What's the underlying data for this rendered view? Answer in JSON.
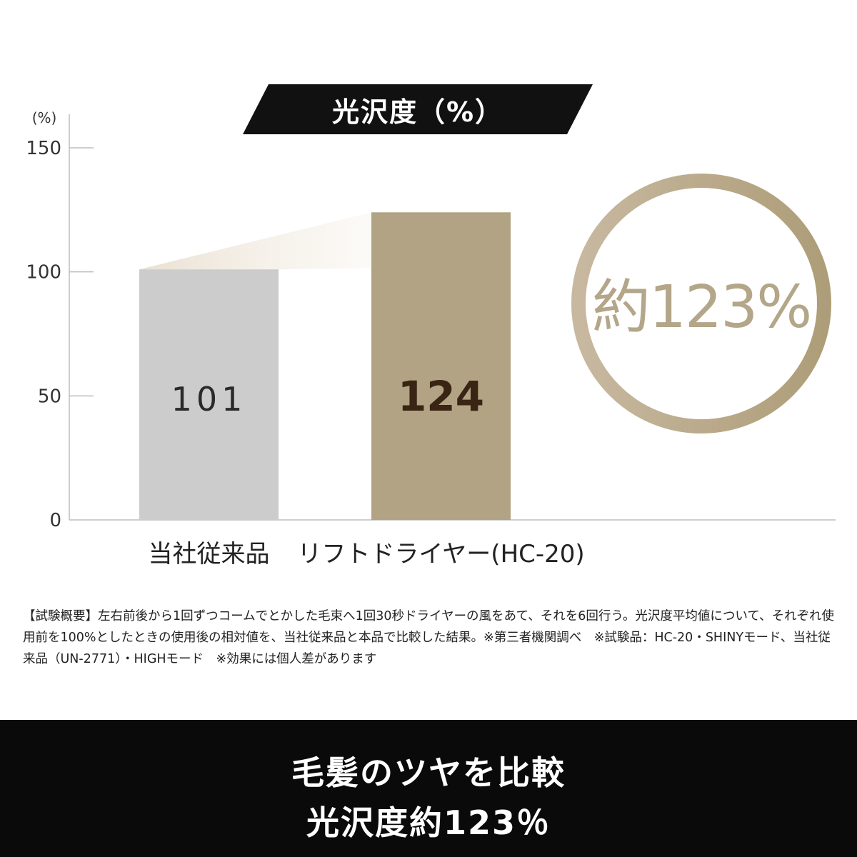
{
  "chart_data": {
    "type": "bar",
    "title": "光沢度（%）",
    "ylabel": "(%)",
    "ylim": [
      0,
      150
    ],
    "yticks": [
      "0",
      "50",
      "100",
      "150"
    ],
    "categories": [
      "当社従来品",
      "リフトドライヤー(HC-20)"
    ],
    "values": [
      101,
      124
    ],
    "value_labels": [
      "101",
      "124"
    ],
    "callout": "約123%",
    "grid": false
  },
  "colors": {
    "bar_old": "#cccccc",
    "bar_new": "#b1a383",
    "value_new": "#3a2414",
    "ring": "#b5a583",
    "callout_text": "#b3a689",
    "band": "#0a0a0a"
  },
  "footnote": "【試験概要】左右前後から1回ずつコームでとかした毛束へ1回30秒ドライヤーの風をあて、それを6回行う。光沢度平均値について、それぞれ使用前を100%としたときの使用後の相対値を、当社従来品と本品で比較した結果。※第三者機関調べ　※試験品：HC-20・SHINYモード、当社従来品（UN-2771）・HIGHモード　※効果には個人差があります",
  "bottom": {
    "line1": "毛髪のツヤを比較",
    "line2": "光沢度約123％"
  }
}
